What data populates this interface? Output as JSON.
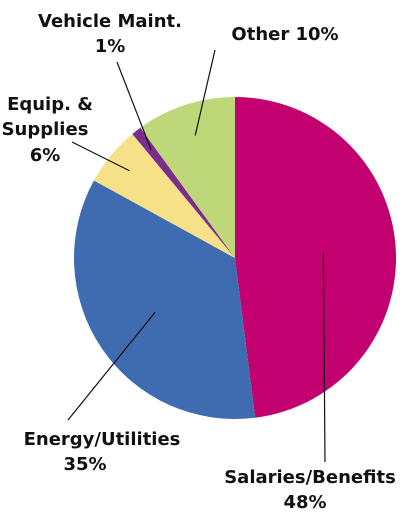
{
  "chart_data": {
    "type": "pie",
    "categories": [
      "Salaries/Benefits",
      "Energy/Utilities",
      "Equip. & Supplies",
      "Vehicle Maint.",
      "Other"
    ],
    "values": [
      48,
      35,
      6,
      1,
      10
    ],
    "value_labels": [
      "48%",
      "35%",
      "6%",
      "1%",
      "10%"
    ],
    "colors": [
      "#c2006f",
      "#3f6cb0",
      "#f6e189",
      "#7b2d8e",
      "#bed778"
    ]
  }
}
